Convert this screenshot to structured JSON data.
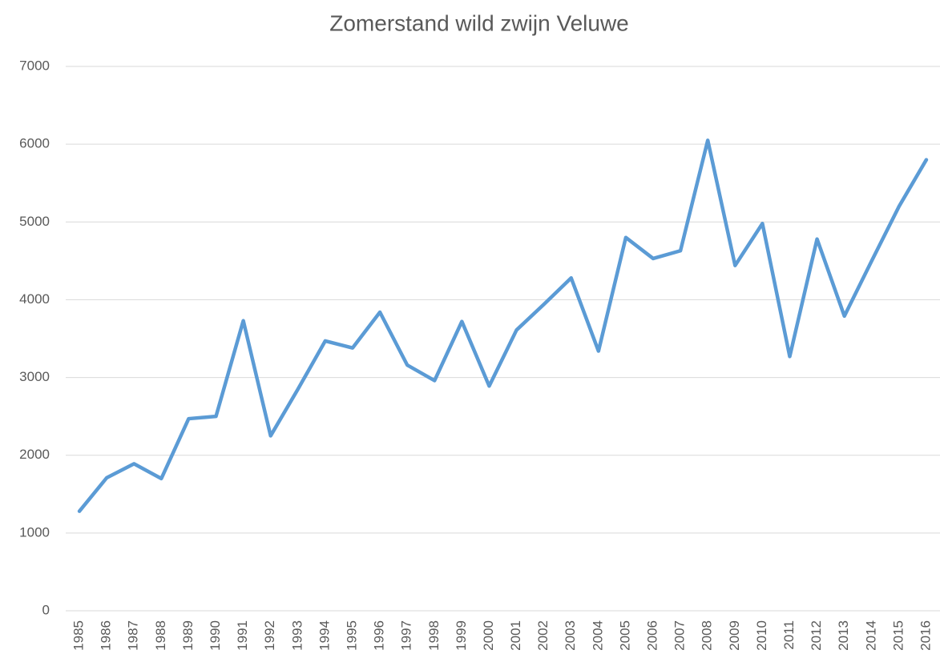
{
  "chart_data": {
    "type": "line",
    "title": "Zomerstand wild zwijn Veluwe",
    "categories": [
      "1985",
      "1986",
      "1987",
      "1988",
      "1989",
      "1990",
      "1991",
      "1992",
      "1993",
      "1994",
      "1995",
      "1996",
      "1997",
      "1998",
      "1999",
      "2000",
      "2001",
      "2002",
      "2003",
      "2004",
      "2005",
      "2006",
      "2007",
      "2008",
      "2009",
      "2010",
      "2011",
      "2012",
      "2013",
      "2014",
      "2015",
      "2016"
    ],
    "series": [
      {
        "name": "Zomerstand",
        "color": "#5b9bd5",
        "values": [
          1280,
          1710,
          1890,
          1700,
          2470,
          2500,
          3730,
          2250,
          2850,
          3470,
          3380,
          3840,
          3160,
          2960,
          3720,
          2890,
          3610,
          3940,
          4280,
          3340,
          4800,
          4530,
          4630,
          6050,
          4440,
          4980,
          3270,
          4780,
          3790,
          4500,
          5200,
          5800
        ]
      }
    ],
    "ylim": [
      0,
      7000
    ],
    "yticks": [
      0,
      1000,
      2000,
      3000,
      4000,
      5000,
      6000,
      7000
    ],
    "grid": true
  }
}
